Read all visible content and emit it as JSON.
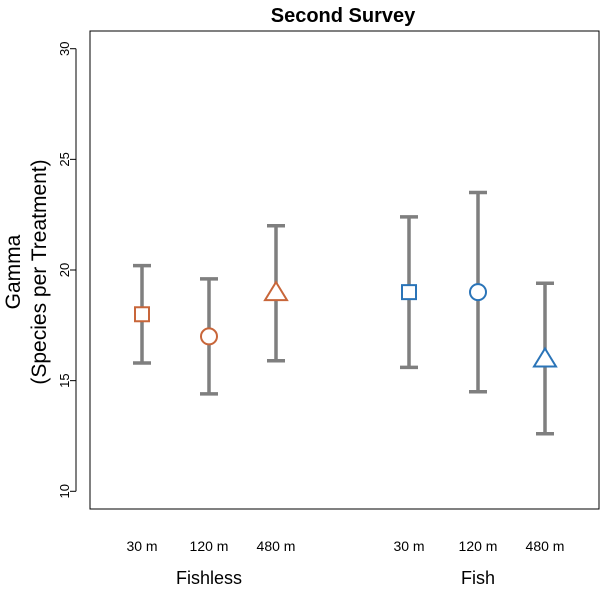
{
  "chart_data": {
    "type": "scatter",
    "title": "Second Survey",
    "ylabel_lines": [
      "Gamma",
      "(Species per Treatment)"
    ],
    "ylim": [
      9.2,
      30.8
    ],
    "yticks": [
      10,
      15,
      20,
      25,
      30
    ],
    "grid": false,
    "groups": [
      "Fishless",
      "Fish"
    ],
    "points": [
      {
        "group": "Fishless",
        "label": "30 m",
        "shape": "square",
        "color": "#C8663A",
        "y": 18.0,
        "lower": 15.8,
        "upper": 20.2
      },
      {
        "group": "Fishless",
        "label": "120 m",
        "shape": "circle",
        "color": "#C8663A",
        "y": 17.0,
        "lower": 14.4,
        "upper": 19.6
      },
      {
        "group": "Fishless",
        "label": "480 m",
        "shape": "triangle",
        "color": "#C8663A",
        "y": 19.0,
        "lower": 15.9,
        "upper": 22.0
      },
      {
        "group": "Fish",
        "label": "30 m",
        "shape": "square",
        "color": "#2A74B8",
        "y": 19.0,
        "lower": 15.6,
        "upper": 22.4
      },
      {
        "group": "Fish",
        "label": "120 m",
        "shape": "circle",
        "color": "#2A74B8",
        "y": 19.0,
        "lower": 14.5,
        "upper": 23.5
      },
      {
        "group": "Fish",
        "label": "480 m",
        "shape": "triangle",
        "color": "#2A74B8",
        "y": 16.0,
        "lower": 12.6,
        "upper": 19.4
      }
    ],
    "errorbar_color": "#7F7F7F"
  }
}
